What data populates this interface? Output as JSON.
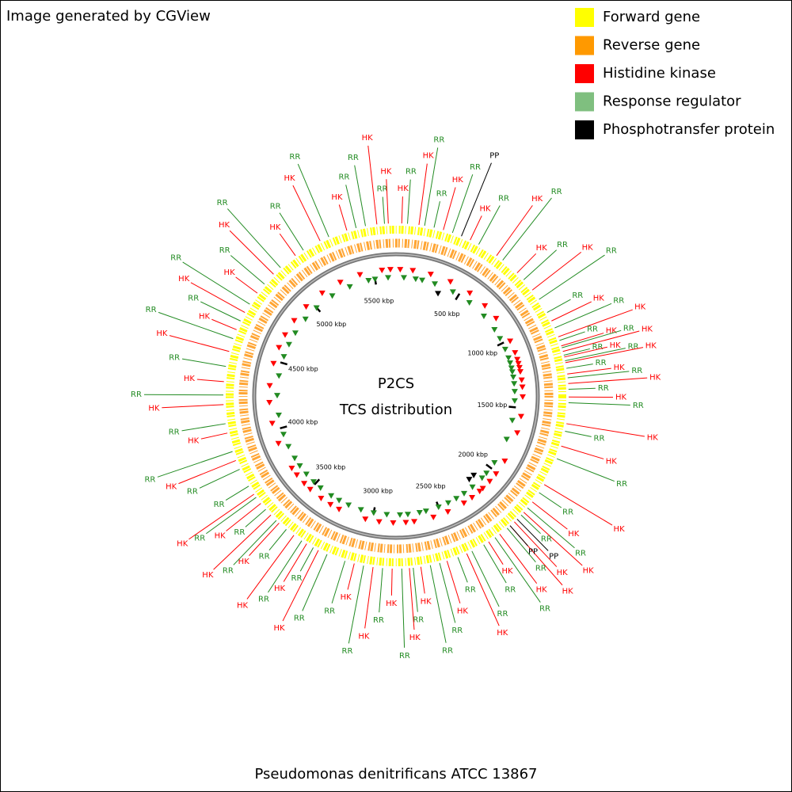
{
  "chart_data": {
    "type": "genome-map",
    "credit": "Image generated by CGView",
    "title": "P2CS",
    "subtitle": "TCS distribution",
    "caption": "Pseudomonas denitrificans ATCC 13867",
    "xlim": [
      0,
      5660
    ],
    "xticks": [
      {
        "value": 500,
        "label": "500 kbp"
      },
      {
        "value": 1000,
        "label": "1000 kbp"
      },
      {
        "value": 1500,
        "label": "1500 kbp"
      },
      {
        "value": 2000,
        "label": "2000 kbp"
      },
      {
        "value": 2500,
        "label": "2500 kbp"
      },
      {
        "value": 3000,
        "label": "3000 kbp"
      },
      {
        "value": 3500,
        "label": "3500 kbp"
      },
      {
        "value": 4000,
        "label": "4000 kbp"
      },
      {
        "value": 4500,
        "label": "4500 kbp"
      },
      {
        "value": 5000,
        "label": "5000 kbp"
      },
      {
        "value": 5500,
        "label": "5500 kbp"
      }
    ],
    "series": [
      {
        "name": "Forward gene",
        "color": "#ffff00"
      },
      {
        "name": "Reverse gene",
        "color": "#ff9900"
      },
      {
        "name": "Histidine kinase",
        "color": "#ff0000",
        "tag": "HK",
        "positions": [
          30,
          120,
          250,
          400,
          560,
          700,
          820,
          1010,
          1100,
          1150,
          1180,
          1210,
          1240,
          1300,
          1350,
          1420,
          1560,
          1680,
          1900,
          2010,
          2080,
          2150,
          2180,
          2250,
          2320,
          2450,
          2560,
          2700,
          2760,
          2850,
          2950,
          3050,
          3250,
          3320,
          3400,
          3500,
          3560,
          3640,
          3700,
          3900,
          4050,
          4200,
          4320,
          4480,
          4600,
          4700,
          4820,
          4950,
          5100,
          5250,
          5400,
          5560,
          5620
        ]
      },
      {
        "name": "Response regulator",
        "color": "#7fbf7f",
        "tag": "RR",
        "positions": [
          60,
          150,
          200,
          300,
          450,
          600,
          750,
          880,
          960,
          1050,
          1120,
          1160,
          1200,
          1230,
          1270,
          1320,
          1380,
          1450,
          1600,
          1750,
          1950,
          2050,
          2100,
          2200,
          2280,
          2350,
          2420,
          2500,
          2600,
          2650,
          2740,
          2800,
          2900,
          3000,
          3100,
          3200,
          3280,
          3350,
          3450,
          3520,
          3600,
          3680,
          3750,
          3850,
          3950,
          4100,
          4250,
          4400,
          4550,
          4650,
          4750,
          4880,
          5000,
          5150,
          5300,
          5450,
          5500,
          5600
        ]
      },
      {
        "name": "Phosphotransfer protein",
        "color": "#000000",
        "tag": "PP",
        "positions": [
          350,
          2130,
          2180
        ]
      }
    ]
  }
}
